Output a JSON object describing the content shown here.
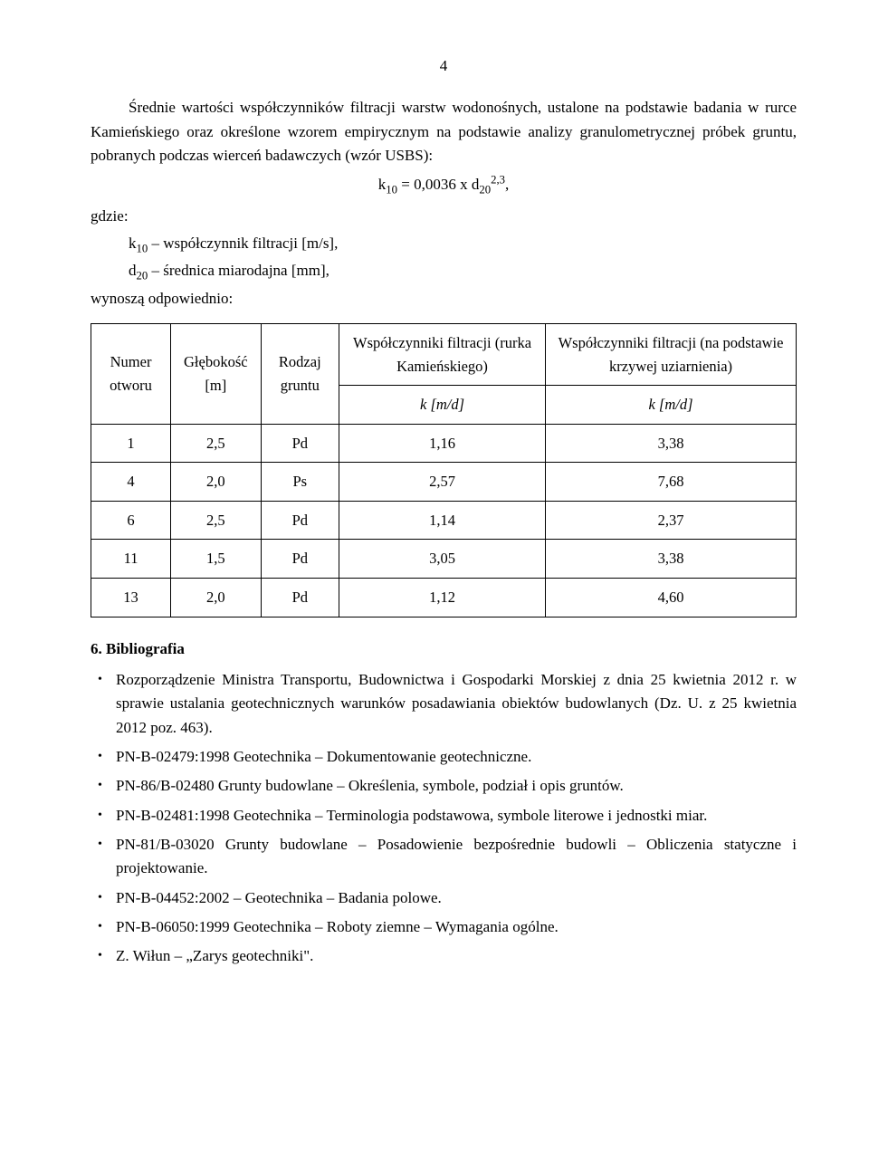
{
  "pageNumber": "4",
  "intro": {
    "para1": "Średnie wartości współczynników filtracji warstw wodonośnych, ustalone na podstawie badania w rurce Kamieńskiego oraz określone wzorem empirycznym na podstawie analizy granulometrycznej próbek gruntu, pobranych podczas wierceń badawczych (wzór USBS):",
    "formula_left": "k",
    "formula_sub1": "10",
    "formula_mid": " = 0,0036 x d",
    "formula_sub2": "20",
    "formula_sup": "2,3",
    "formula_tail": ",",
    "gdzie": "gdzie:",
    "line1_a": "k",
    "line1_sub": "10",
    "line1_b": " – współczynnik filtracji [m/s],",
    "line2_a": "d",
    "line2_sub": "20",
    "line2_b": " – średnica miarodajna [mm],",
    "line3": "wynoszą odpowiednio:"
  },
  "table": {
    "headers": {
      "col1": "Numer otworu",
      "col2": "Głębokość [m]",
      "col3": "Rodzaj gruntu",
      "col4_a": "Współczynniki filtracji (rurka Kamieńskiego)",
      "col4_b": "k [m/d]",
      "col5_a": "Współczynniki filtracji (na podstawie krzywej uziarnienia)",
      "col5_b": "k [m/d]"
    },
    "rows": [
      {
        "c1": "1",
        "c2": "2,5",
        "c3": "Pd",
        "c4": "1,16",
        "c5": "3,38"
      },
      {
        "c1": "4",
        "c2": "2,0",
        "c3": "Ps",
        "c4": "2,57",
        "c5": "7,68"
      },
      {
        "c1": "6",
        "c2": "2,5",
        "c3": "Pd",
        "c4": "1,14",
        "c5": "2,37"
      },
      {
        "c1": "11",
        "c2": "1,5",
        "c3": "Pd",
        "c4": "3,05",
        "c5": "3,38"
      },
      {
        "c1": "13",
        "c2": "2,0",
        "c3": "Pd",
        "c4": "1,12",
        "c5": "4,60"
      }
    ]
  },
  "biblio": {
    "heading": "6. Bibliografia",
    "items": [
      "Rozporządzenie Ministra Transportu, Budownictwa i Gospodarki Morskiej z dnia 25 kwietnia 2012 r. w sprawie ustalania geotechnicznych warunków posadawiania obiektów budowlanych (Dz. U. z 25 kwietnia 2012 poz. 463).",
      "PN-B-02479:1998 Geotechnika – Dokumentowanie geotechniczne.",
      "PN-86/B-02480 Grunty budowlane – Określenia, symbole, podział i opis gruntów.",
      "PN-B-02481:1998 Geotechnika – Terminologia podstawowa, symbole literowe i jednostki miar.",
      "PN-81/B-03020 Grunty budowlane – Posadowienie bezpośrednie budowli – Obliczenia statyczne i projektowanie.",
      "PN-B-04452:2002 – Geotechnika – Badania polowe.",
      "PN-B-06050:1999 Geotechnika – Roboty ziemne – Wymagania ogólne.",
      "Z. Wiłun – „Zarys geotechniki\"."
    ]
  }
}
